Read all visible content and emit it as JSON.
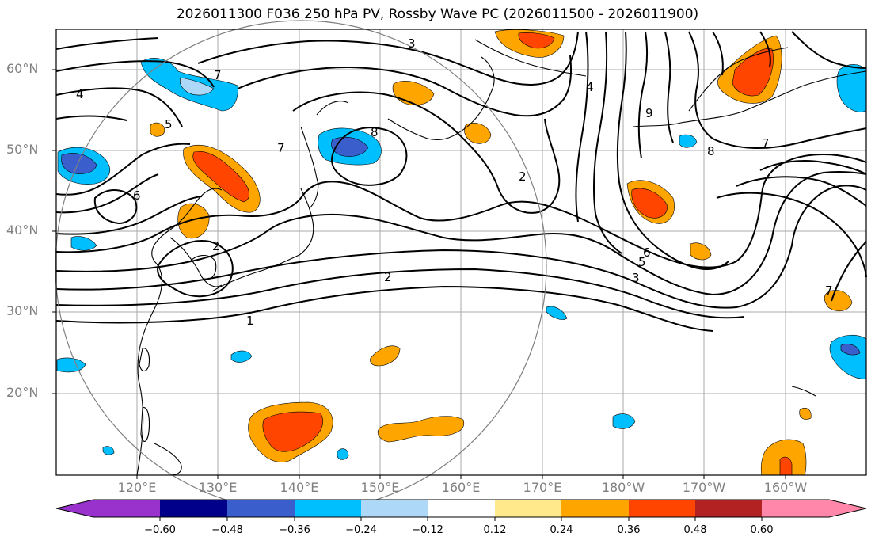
{
  "title": "2026011300 F036 250 hPa PV, Rossby Wave PC (2026011500 - 2026011900)",
  "map": {
    "lat_labels": [
      "60°N",
      "50°N",
      "40°N",
      "30°N",
      "20°N"
    ],
    "lon_labels": [
      "120°E",
      "130°E",
      "140°E",
      "150°E",
      "160°E",
      "170°E",
      "180°W",
      "170°W",
      "160°W"
    ],
    "contour_labels": [
      "1",
      "2",
      "2",
      "2",
      "3",
      "3",
      "4",
      "4",
      "5",
      "5",
      "6",
      "6",
      "7",
      "7",
      "7",
      "7",
      "8",
      "8",
      "9"
    ]
  },
  "colorbar": {
    "tick_labels": [
      "−0.60",
      "−0.48",
      "−0.36",
      "−0.24",
      "−0.12",
      "0.12",
      "0.24",
      "0.36",
      "0.48",
      "0.60"
    ],
    "colors": [
      "#9932cc",
      "#00008b",
      "#3a5fcd",
      "#00bfff",
      "#add8f7",
      "#ffffff",
      "#ffe98a",
      "#ffa500",
      "#ff4500",
      "#b22222",
      "#ff88aa"
    ]
  }
}
